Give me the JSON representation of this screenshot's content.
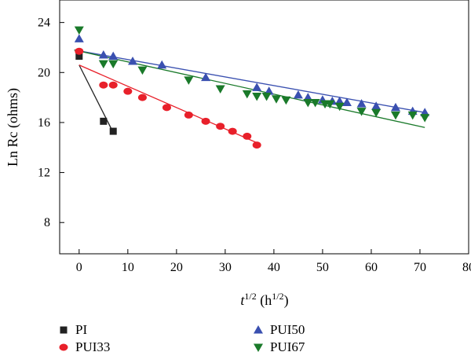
{
  "chart_data": {
    "type": "scatter",
    "xlabel": "t",
    "xlabel_sup": "1/2",
    "xlabel_unit_open": " (h",
    "xlabel_unit_sup": "1/2",
    "xlabel_unit_close": ")",
    "ylabel": "Ln Rc (ohms)",
    "xlim": [
      -4,
      80
    ],
    "ylim": [
      5.5,
      25.8
    ],
    "xticks": [
      0,
      10,
      20,
      30,
      40,
      50,
      60,
      70,
      80
    ],
    "yticks": [
      8,
      12,
      16,
      20,
      24
    ],
    "grid": false,
    "legend_position": "bottom",
    "series": [
      {
        "name": "PI",
        "marker": "square",
        "color": "#222222",
        "points": [
          [
            0,
            21.3
          ],
          [
            5,
            16.1
          ],
          [
            7,
            15.3
          ]
        ],
        "fit": [
          [
            0,
            20.6
          ],
          [
            7,
            15.2
          ]
        ]
      },
      {
        "name": "PUI33",
        "marker": "circle",
        "color": "#e8202a",
        "points": [
          [
            0,
            21.7
          ],
          [
            5,
            19.0
          ],
          [
            7,
            19.0
          ],
          [
            10,
            18.5
          ],
          [
            13,
            18.0
          ],
          [
            18,
            17.2
          ],
          [
            22.5,
            16.6
          ],
          [
            26,
            16.1
          ],
          [
            29,
            15.7
          ],
          [
            31.5,
            15.3
          ],
          [
            34.5,
            14.9
          ],
          [
            36.5,
            14.2
          ]
        ],
        "fit": [
          [
            0,
            20.6
          ],
          [
            37,
            14.3
          ]
        ]
      },
      {
        "name": "PUI50",
        "marker": "triangle-up",
        "color": "#3a50b0",
        "points": [
          [
            0,
            22.7
          ],
          [
            5,
            21.4
          ],
          [
            7,
            21.3
          ],
          [
            11,
            20.9
          ],
          [
            17,
            20.6
          ],
          [
            26,
            19.6
          ],
          [
            36.5,
            18.8
          ],
          [
            39,
            18.5
          ],
          [
            45,
            18.2
          ],
          [
            47,
            18.0
          ],
          [
            50,
            17.8
          ],
          [
            52,
            17.7
          ],
          [
            53.5,
            17.7
          ],
          [
            55,
            17.6
          ],
          [
            58,
            17.5
          ],
          [
            61,
            17.3
          ],
          [
            65,
            17.2
          ],
          [
            68.5,
            16.9
          ],
          [
            71,
            16.8
          ]
        ],
        "fit": [
          [
            -1,
            21.8
          ],
          [
            71,
            16.8
          ]
        ]
      },
      {
        "name": "PUI67",
        "marker": "triangle-down",
        "color": "#1a7a2a",
        "points": [
          [
            0,
            23.4
          ],
          [
            5,
            20.7
          ],
          [
            7,
            20.7
          ],
          [
            13,
            20.2
          ],
          [
            22.5,
            19.4
          ],
          [
            29,
            18.7
          ],
          [
            34.5,
            18.3
          ],
          [
            36.5,
            18.1
          ],
          [
            38.5,
            18.1
          ],
          [
            40.5,
            17.9
          ],
          [
            42.5,
            17.8
          ],
          [
            47,
            17.6
          ],
          [
            48.5,
            17.6
          ],
          [
            50.5,
            17.5
          ],
          [
            51.5,
            17.5
          ],
          [
            53.5,
            17.3
          ],
          [
            58,
            16.9
          ],
          [
            61,
            16.8
          ],
          [
            65,
            16.6
          ],
          [
            68.5,
            16.6
          ],
          [
            71,
            16.4
          ]
        ],
        "fit": [
          [
            -1,
            21.8
          ],
          [
            71,
            15.6
          ]
        ]
      }
    ]
  }
}
